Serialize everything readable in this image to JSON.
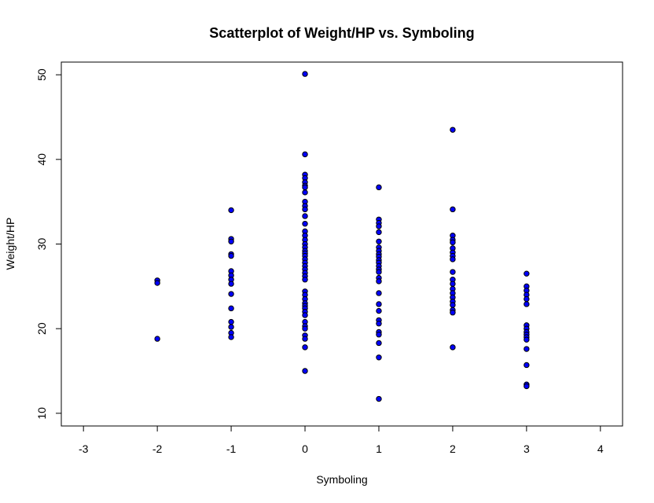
{
  "chart_data": {
    "type": "scatter",
    "title": "Scatterplot of Weight/HP vs. Symboling",
    "xlabel": "Symboling",
    "ylabel": "Weight/HP",
    "xlim": [
      -3.3,
      4.3
    ],
    "ylim": [
      8.5,
      51.5
    ],
    "x_ticks": [
      -3,
      -2,
      -1,
      0,
      1,
      2,
      3,
      4
    ],
    "y_ticks": [
      10,
      20,
      30,
      40,
      50
    ],
    "grid": false,
    "point_fill": "#0000ff",
    "point_stroke": "#000000",
    "points": [
      {
        "x": -2,
        "y": 25.7
      },
      {
        "x": -2,
        "y": 25.4
      },
      {
        "x": -2,
        "y": 18.8
      },
      {
        "x": -1,
        "y": 34.0
      },
      {
        "x": -1,
        "y": 30.6
      },
      {
        "x": -1,
        "y": 30.3
      },
      {
        "x": -1,
        "y": 28.8
      },
      {
        "x": -1,
        "y": 28.6
      },
      {
        "x": -1,
        "y": 26.8
      },
      {
        "x": -1,
        "y": 26.3
      },
      {
        "x": -1,
        "y": 25.8
      },
      {
        "x": -1,
        "y": 25.3
      },
      {
        "x": -1,
        "y": 24.1
      },
      {
        "x": -1,
        "y": 22.4
      },
      {
        "x": -1,
        "y": 20.8
      },
      {
        "x": -1,
        "y": 20.2
      },
      {
        "x": -1,
        "y": 19.5
      },
      {
        "x": -1,
        "y": 19.0
      },
      {
        "x": 0,
        "y": 50.1
      },
      {
        "x": 0,
        "y": 40.6
      },
      {
        "x": 0,
        "y": 38.2
      },
      {
        "x": 0,
        "y": 37.8
      },
      {
        "x": 0,
        "y": 37.3
      },
      {
        "x": 0,
        "y": 36.9
      },
      {
        "x": 0,
        "y": 36.7
      },
      {
        "x": 0,
        "y": 36.1
      },
      {
        "x": 0,
        "y": 35.0
      },
      {
        "x": 0,
        "y": 34.5
      },
      {
        "x": 0,
        "y": 34.1
      },
      {
        "x": 0,
        "y": 33.3
      },
      {
        "x": 0,
        "y": 32.4
      },
      {
        "x": 0,
        "y": 31.5
      },
      {
        "x": 0,
        "y": 31.0
      },
      {
        "x": 0,
        "y": 30.5
      },
      {
        "x": 0,
        "y": 30.0
      },
      {
        "x": 0,
        "y": 29.6
      },
      {
        "x": 0,
        "y": 29.2
      },
      {
        "x": 0,
        "y": 28.9
      },
      {
        "x": 0,
        "y": 28.6
      },
      {
        "x": 0,
        "y": 28.2
      },
      {
        "x": 0,
        "y": 27.8
      },
      {
        "x": 0,
        "y": 27.4
      },
      {
        "x": 0,
        "y": 27.0
      },
      {
        "x": 0,
        "y": 26.6
      },
      {
        "x": 0,
        "y": 26.2
      },
      {
        "x": 0,
        "y": 25.8
      },
      {
        "x": 0,
        "y": 24.4
      },
      {
        "x": 0,
        "y": 24.0
      },
      {
        "x": 0,
        "y": 23.5
      },
      {
        "x": 0,
        "y": 23.0
      },
      {
        "x": 0,
        "y": 22.7
      },
      {
        "x": 0,
        "y": 22.4
      },
      {
        "x": 0,
        "y": 22.0
      },
      {
        "x": 0,
        "y": 21.6
      },
      {
        "x": 0,
        "y": 20.8
      },
      {
        "x": 0,
        "y": 20.3
      },
      {
        "x": 0,
        "y": 20.0
      },
      {
        "x": 0,
        "y": 19.2
      },
      {
        "x": 0,
        "y": 18.8
      },
      {
        "x": 0,
        "y": 17.8
      },
      {
        "x": 0,
        "y": 15.0
      },
      {
        "x": 1,
        "y": 36.7
      },
      {
        "x": 1,
        "y": 32.9
      },
      {
        "x": 1,
        "y": 32.5
      },
      {
        "x": 1,
        "y": 32.1
      },
      {
        "x": 1,
        "y": 31.4
      },
      {
        "x": 1,
        "y": 30.3
      },
      {
        "x": 1,
        "y": 29.6
      },
      {
        "x": 1,
        "y": 29.2
      },
      {
        "x": 1,
        "y": 28.8
      },
      {
        "x": 1,
        "y": 28.5
      },
      {
        "x": 1,
        "y": 28.1
      },
      {
        "x": 1,
        "y": 27.8
      },
      {
        "x": 1,
        "y": 27.4
      },
      {
        "x": 1,
        "y": 27.0
      },
      {
        "x": 1,
        "y": 26.7
      },
      {
        "x": 1,
        "y": 26.0
      },
      {
        "x": 1,
        "y": 25.6
      },
      {
        "x": 1,
        "y": 24.2
      },
      {
        "x": 1,
        "y": 22.9
      },
      {
        "x": 1,
        "y": 22.1
      },
      {
        "x": 1,
        "y": 21.0
      },
      {
        "x": 1,
        "y": 20.6
      },
      {
        "x": 1,
        "y": 19.6
      },
      {
        "x": 1,
        "y": 19.3
      },
      {
        "x": 1,
        "y": 18.3
      },
      {
        "x": 1,
        "y": 16.6
      },
      {
        "x": 1,
        "y": 11.7
      },
      {
        "x": 2,
        "y": 43.5
      },
      {
        "x": 2,
        "y": 34.1
      },
      {
        "x": 2,
        "y": 31.0
      },
      {
        "x": 2,
        "y": 30.5
      },
      {
        "x": 2,
        "y": 30.2
      },
      {
        "x": 2,
        "y": 29.5
      },
      {
        "x": 2,
        "y": 29.0
      },
      {
        "x": 2,
        "y": 28.6
      },
      {
        "x": 2,
        "y": 28.2
      },
      {
        "x": 2,
        "y": 26.7
      },
      {
        "x": 2,
        "y": 25.8
      },
      {
        "x": 2,
        "y": 25.3
      },
      {
        "x": 2,
        "y": 24.7
      },
      {
        "x": 2,
        "y": 24.2
      },
      {
        "x": 2,
        "y": 23.7
      },
      {
        "x": 2,
        "y": 23.2
      },
      {
        "x": 2,
        "y": 22.8
      },
      {
        "x": 2,
        "y": 22.2
      },
      {
        "x": 2,
        "y": 21.9
      },
      {
        "x": 2,
        "y": 17.8
      },
      {
        "x": 3,
        "y": 26.5
      },
      {
        "x": 3,
        "y": 25.0
      },
      {
        "x": 3,
        "y": 24.5
      },
      {
        "x": 3,
        "y": 24.0
      },
      {
        "x": 3,
        "y": 23.5
      },
      {
        "x": 3,
        "y": 22.9
      },
      {
        "x": 3,
        "y": 20.4
      },
      {
        "x": 3,
        "y": 20.0
      },
      {
        "x": 3,
        "y": 19.6
      },
      {
        "x": 3,
        "y": 19.3
      },
      {
        "x": 3,
        "y": 19.0
      },
      {
        "x": 3,
        "y": 18.7
      },
      {
        "x": 3,
        "y": 17.6
      },
      {
        "x": 3,
        "y": 15.7
      },
      {
        "x": 3,
        "y": 13.4
      },
      {
        "x": 3,
        "y": 13.2
      }
    ]
  }
}
